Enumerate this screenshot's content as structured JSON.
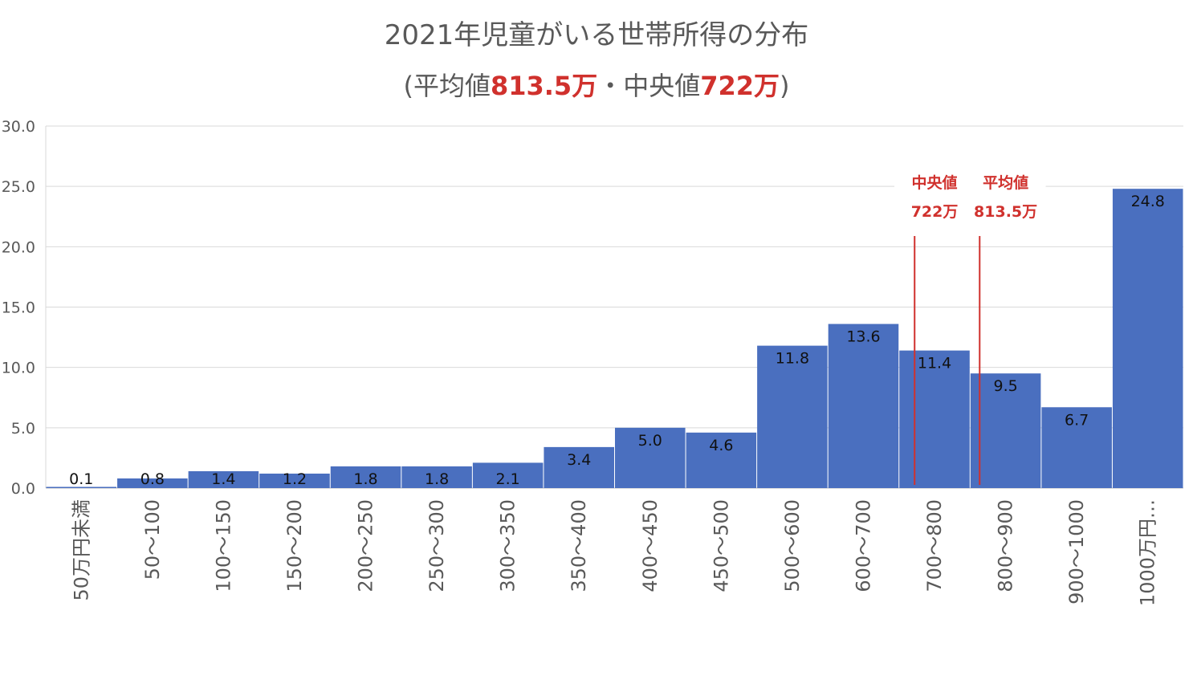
{
  "chart_data": {
    "type": "bar",
    "title": "2021年児童がいる世帯所得の分布",
    "subtitle": {
      "prefix": "(平均値",
      "mean_value": "813.5万",
      "middle": "・中央値",
      "median_value": "722万",
      "suffix": ")"
    },
    "categories": [
      "50万円未満",
      "50〜100",
      "100〜150",
      "150〜200",
      "200〜250",
      "250〜300",
      "300〜350",
      "350〜400",
      "400〜450",
      "450〜500",
      "500〜600",
      "600〜700",
      "700〜800",
      "800〜900",
      "900〜1000",
      "1000万円…"
    ],
    "values": [
      0.1,
      0.8,
      1.4,
      1.2,
      1.8,
      1.8,
      2.1,
      3.4,
      5.0,
      4.6,
      11.8,
      13.6,
      11.4,
      9.5,
      6.7,
      24.8
    ],
    "data_labels": [
      "0.1",
      "0.8",
      "1.4",
      "1.2",
      "1.8",
      "1.8",
      "2.1",
      "3.4",
      "5.0",
      "4.6",
      "11.8",
      "13.6",
      "11.4",
      "9.5",
      "6.7",
      "24.8"
    ],
    "ylim": [
      0,
      30
    ],
    "yticks": [
      "0.0",
      "5.0",
      "10.0",
      "15.0",
      "20.0",
      "25.0",
      "30.0"
    ],
    "grid": true,
    "bar_color": "#4a6fbf",
    "annotation_color": "#d0312d",
    "annotations": [
      {
        "label1": "中央値",
        "label2": "722万",
        "category_index": 12,
        "position_in_bin": 0.22
      },
      {
        "label1": "平均値",
        "label2": "813.5万",
        "category_index": 13,
        "position_in_bin": 0.135
      }
    ]
  }
}
